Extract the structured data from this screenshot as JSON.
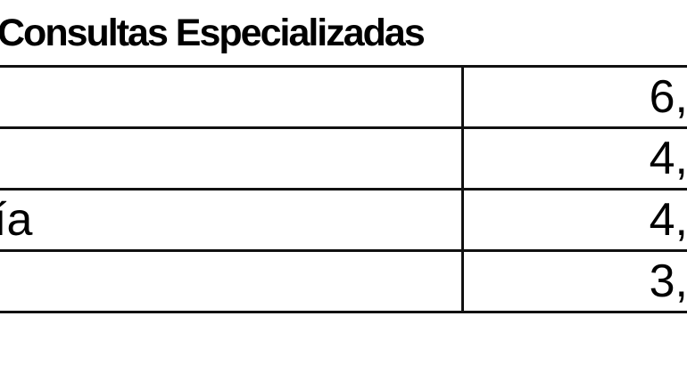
{
  "title": "Consultas Especializadas",
  "table": {
    "rows": [
      {
        "label": "",
        "value": "6,"
      },
      {
        "label": "",
        "value": "4,"
      },
      {
        "label": "ía",
        "value": "4,"
      },
      {
        "label": "",
        "value": "3,"
      }
    ]
  },
  "colors": {
    "text": "#000000",
    "border": "#111111",
    "background": "#ffffff"
  }
}
